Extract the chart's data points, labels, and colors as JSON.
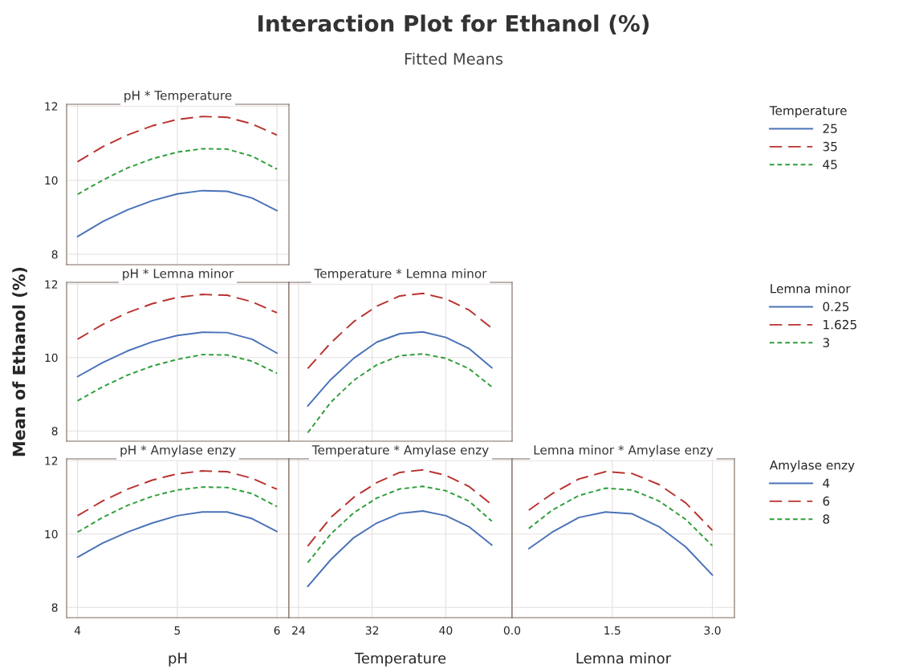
{
  "chart_data": [
    {
      "type": "other",
      "title": "Interaction Plot for Ethanol (%)",
      "subtitle": "Fitted Means"
    },
    {
      "type": "line",
      "title": "pH * Temperature",
      "x": [
        4,
        4.25,
        4.5,
        4.75,
        5,
        5.25,
        5.5,
        5.75,
        6
      ],
      "xlim": [
        3.89,
        6.12
      ],
      "xticks": [
        4,
        5,
        6
      ],
      "ylim": [
        7.72,
        12.05
      ],
      "yticks": [
        8,
        10,
        12
      ],
      "grid": true,
      "tick_labels": "y",
      "legend": "right",
      "legend_title": "Temperature",
      "series": [
        {
          "name": "25",
          "color": "#4a72b8",
          "line_style": "solid",
          "values": [
            8.48,
            8.88,
            9.2,
            9.45,
            9.63,
            9.72,
            9.7,
            9.52,
            9.18
          ]
        },
        {
          "name": "35",
          "color": "#b8322e",
          "line_style": "dashed",
          "values": [
            10.5,
            10.9,
            11.22,
            11.47,
            11.64,
            11.72,
            11.7,
            11.52,
            11.22
          ]
        },
        {
          "name": "45",
          "color": "#2e9e3a",
          "line_style": "dotted",
          "values": [
            9.62,
            10.0,
            10.33,
            10.58,
            10.76,
            10.85,
            10.84,
            10.65,
            10.3
          ]
        }
      ]
    },
    {
      "type": "line",
      "title": "pH * Lemna minor",
      "ylabel": "Mean of Ethanol (%)",
      "x": [
        4,
        4.25,
        4.5,
        4.75,
        5,
        5.25,
        5.5,
        5.75,
        6
      ],
      "xlim": [
        3.89,
        6.12
      ],
      "xticks": [
        4,
        5,
        6
      ],
      "ylim": [
        7.72,
        12.05
      ],
      "yticks": [
        8,
        10,
        12
      ],
      "grid": true,
      "tick_labels": "y",
      "legend": "right",
      "legend_title": "Lemna minor",
      "series": [
        {
          "name": "0.25",
          "color": "#4a72b8",
          "line_style": "solid",
          "values": [
            9.48,
            9.86,
            10.18,
            10.43,
            10.6,
            10.69,
            10.68,
            10.5,
            10.12
          ]
        },
        {
          "name": "1.625",
          "color": "#b8322e",
          "line_style": "dashed",
          "values": [
            10.5,
            10.9,
            11.22,
            11.47,
            11.64,
            11.72,
            11.7,
            11.52,
            11.22
          ]
        },
        {
          "name": "3",
          "color": "#2e9e3a",
          "line_style": "dotted",
          "values": [
            8.82,
            9.2,
            9.52,
            9.77,
            9.95,
            10.08,
            10.07,
            9.9,
            9.57
          ]
        }
      ]
    },
    {
      "type": "line",
      "title": "Temperature * Lemna minor",
      "x": [
        25,
        27.5,
        30,
        32.5,
        35,
        37.5,
        40,
        42.5,
        45
      ],
      "xlim": [
        22.96,
        47.2
      ],
      "xticks": [
        24,
        32,
        40
      ],
      "ylim": [
        7.72,
        12.05
      ],
      "yticks": [
        8,
        10,
        12
      ],
      "grid": true,
      "tick_labels": false,
      "series": [
        {
          "color": "#4a72b8",
          "line_style": "solid",
          "values": [
            8.68,
            9.4,
            9.98,
            10.42,
            10.65,
            10.7,
            10.55,
            10.25,
            9.72
          ]
        },
        {
          "color": "#b8322e",
          "line_style": "dashed",
          "values": [
            9.7,
            10.4,
            10.98,
            11.4,
            11.68,
            11.75,
            11.6,
            11.3,
            10.8
          ]
        },
        {
          "color": "#2e9e3a",
          "line_style": "dotted",
          "values": [
            7.95,
            8.78,
            9.38,
            9.8,
            10.05,
            10.1,
            9.98,
            9.7,
            9.2
          ]
        }
      ]
    },
    {
      "type": "line",
      "title": "pH * Amylase enzy",
      "xlabel": "pH",
      "x": [
        4,
        4.25,
        4.5,
        4.75,
        5,
        5.25,
        5.5,
        5.75,
        6
      ],
      "xlim": [
        3.89,
        6.12
      ],
      "xticks": [
        4,
        5,
        6
      ],
      "ylim": [
        7.72,
        12.05
      ],
      "yticks": [
        8,
        10,
        12
      ],
      "grid": true,
      "legend": "right",
      "legend_title": "Amylase enzy",
      "series": [
        {
          "name": "4",
          "color": "#4a72b8",
          "line_style": "solid",
          "values": [
            9.37,
            9.75,
            10.05,
            10.3,
            10.5,
            10.6,
            10.6,
            10.42,
            10.07
          ]
        },
        {
          "name": "6",
          "color": "#b8322e",
          "line_style": "dashed",
          "values": [
            10.5,
            10.9,
            11.22,
            11.47,
            11.64,
            11.72,
            11.7,
            11.52,
            11.22
          ]
        },
        {
          "name": "8",
          "color": "#2e9e3a",
          "line_style": "dotted",
          "values": [
            10.05,
            10.45,
            10.78,
            11.03,
            11.2,
            11.28,
            11.27,
            11.1,
            10.75
          ]
        }
      ]
    },
    {
      "type": "line",
      "title": "Temperature * Amylase enzy",
      "xlabel": "Temperature",
      "x": [
        25,
        27.5,
        30,
        32.5,
        35,
        37.5,
        40,
        42.5,
        45
      ],
      "xlim": [
        22.96,
        47.2
      ],
      "xticks": [
        24,
        32,
        40
      ],
      "ylim": [
        7.72,
        12.05
      ],
      "yticks": [
        8,
        10,
        12
      ],
      "grid": true,
      "tick_labels": "x",
      "series": [
        {
          "color": "#4a72b8",
          "line_style": "solid",
          "values": [
            8.57,
            9.3,
            9.9,
            10.3,
            10.56,
            10.63,
            10.5,
            10.2,
            9.7
          ]
        },
        {
          "color": "#b8322e",
          "line_style": "dashed",
          "values": [
            9.67,
            10.45,
            11.0,
            11.4,
            11.68,
            11.75,
            11.6,
            11.3,
            10.8
          ]
        },
        {
          "color": "#2e9e3a",
          "line_style": "dotted",
          "values": [
            9.22,
            10.0,
            10.58,
            10.98,
            11.23,
            11.3,
            11.18,
            10.9,
            10.35
          ]
        }
      ]
    },
    {
      "type": "line",
      "title": "Lemna minor * Amylase enzy",
      "xlabel": "Lemna minor",
      "x": [
        0.25,
        0.6,
        1.0,
        1.4,
        1.8,
        2.2,
        2.6,
        3.0
      ],
      "xlim": [
        0.0,
        3.33
      ],
      "xticks": [
        {
          "value": 0,
          "label": "0.0"
        },
        1.5,
        {
          "value": 3,
          "label": "3.0"
        }
      ],
      "ylim": [
        7.72,
        12.05
      ],
      "yticks": [
        8,
        10,
        12
      ],
      "grid": true,
      "tick_labels": "x",
      "series": [
        {
          "color": "#4a72b8",
          "line_style": "solid",
          "values": [
            9.6,
            10.05,
            10.45,
            10.6,
            10.55,
            10.2,
            9.65,
            8.88
          ]
        },
        {
          "color": "#b8322e",
          "line_style": "dashed",
          "values": [
            10.65,
            11.1,
            11.5,
            11.7,
            11.65,
            11.35,
            10.85,
            10.1
          ]
        },
        {
          "color": "#2e9e3a",
          "line_style": "dotted",
          "values": [
            10.15,
            10.65,
            11.05,
            11.25,
            11.2,
            10.9,
            10.4,
            9.68
          ]
        }
      ]
    }
  ]
}
